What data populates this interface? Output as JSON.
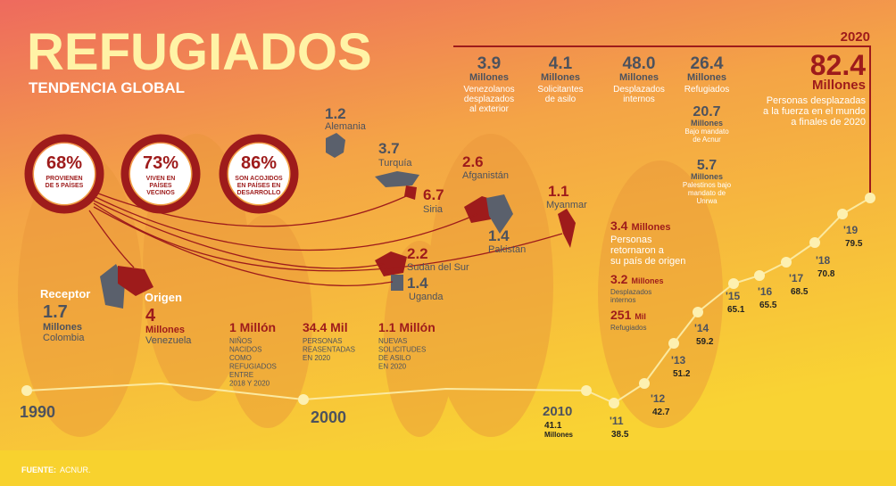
{
  "header": {
    "title": "REFUGIADOS",
    "subtitle": "TENDENCIA GLOBAL"
  },
  "circles": [
    {
      "value": "68%",
      "lines": [
        "PROVIENEN",
        "DE 5 PAÍSES"
      ]
    },
    {
      "value": "73%",
      "lines": [
        "VIVEN EN",
        "PAÍSES",
        "VECINOS"
      ]
    },
    {
      "value": "86%",
      "lines": [
        "SON ACOJIDOS",
        "EN PAÍSES EN",
        "DESARROLLO"
      ]
    }
  ],
  "countries": [
    {
      "value": "1.2",
      "name": "Alemania"
    },
    {
      "value": "3.7",
      "name": "Turquía"
    },
    {
      "value": "6.7",
      "name": "Siria"
    },
    {
      "value": "2.6",
      "name": "Afganistán"
    },
    {
      "value": "1.4",
      "name": "Pakistán"
    },
    {
      "value": "1.1",
      "name": "Myanmar"
    },
    {
      "value": "2.2",
      "name": "Sudán del Sur"
    },
    {
      "value": "1.4",
      "name": "Uganda"
    }
  ],
  "receptor": {
    "label": "Receptor",
    "value": "1.7",
    "unit": "Millones",
    "name": "Colombia"
  },
  "origen": {
    "label": "Origen",
    "value": "4",
    "unit": "Millones",
    "name": "Venezuela"
  },
  "facts": [
    {
      "value": "1 Millón",
      "lines": [
        "NIÑOS",
        "NACIDOS",
        "COMO",
        "REFUGIADOS",
        "ENTRE",
        "2018 Y 2020"
      ]
    },
    {
      "value": "34.4 Mil",
      "lines": [
        "PERSONAS",
        "REASENTADAS",
        "EN 2020"
      ]
    },
    {
      "value": "1.1 Millón",
      "lines": [
        "NUEVAS",
        "SOLICITUDES",
        "DE ASILO",
        "EN 2020"
      ]
    }
  ],
  "returns": [
    {
      "value": "3.4",
      "unit": "Millones",
      "lines": [
        "Personas",
        "retornaron a",
        "su país de origen"
      ]
    },
    {
      "value": "3.2",
      "unit": "Millones",
      "lines": [
        "Desplazados",
        "internos"
      ]
    },
    {
      "value": "251",
      "unit": "Mil",
      "lines": [
        "Refugiados"
      ]
    }
  ],
  "stats": [
    {
      "value": "3.9",
      "unit": "Millones",
      "lines": [
        "Venezolanos",
        "desplazados",
        "al exterior"
      ]
    },
    {
      "value": "4.1",
      "unit": "Millones",
      "lines": [
        "Solicitantes",
        "de asilo"
      ]
    },
    {
      "value": "48.0",
      "unit": "Millones",
      "lines": [
        "Desplazados",
        "internos"
      ]
    },
    {
      "value": "26.4",
      "unit": "Millones",
      "lines": [
        "Refugiados"
      ]
    },
    {
      "value": "20.7",
      "unit": "Millones",
      "lines": [
        "Bajo mandato",
        "de Acnur"
      ]
    },
    {
      "value": "5.7",
      "unit": "Millones",
      "lines": [
        "Palestinos bajo",
        "mandato de",
        "Unrwa"
      ]
    }
  ],
  "total": {
    "year": "2020",
    "value": "82.4",
    "unit": "Millones",
    "lines": [
      "Personas desplazadas",
      "a la fuerza en el mundo",
      "a finales de 2020"
    ]
  },
  "timeline": [
    {
      "year": "1990"
    },
    {
      "year": "2000"
    },
    {
      "year": "2010",
      "value": "41.1",
      "unit": "Millones"
    },
    {
      "year": "'11",
      "value": "38.5"
    },
    {
      "year": "'12",
      "value": "42.7"
    },
    {
      "year": "'13",
      "value": "51.2"
    },
    {
      "year": "'14",
      "value": "59.2"
    },
    {
      "year": "'15",
      "value": "65.1"
    },
    {
      "year": "'16",
      "value": "65.5"
    },
    {
      "year": "'17",
      "value": "68.5"
    },
    {
      "year": "'18",
      "value": "70.8"
    },
    {
      "year": "'19",
      "value": "79.5"
    }
  ],
  "source": {
    "label": "FUENTE:",
    "text": "ACNUR."
  }
}
